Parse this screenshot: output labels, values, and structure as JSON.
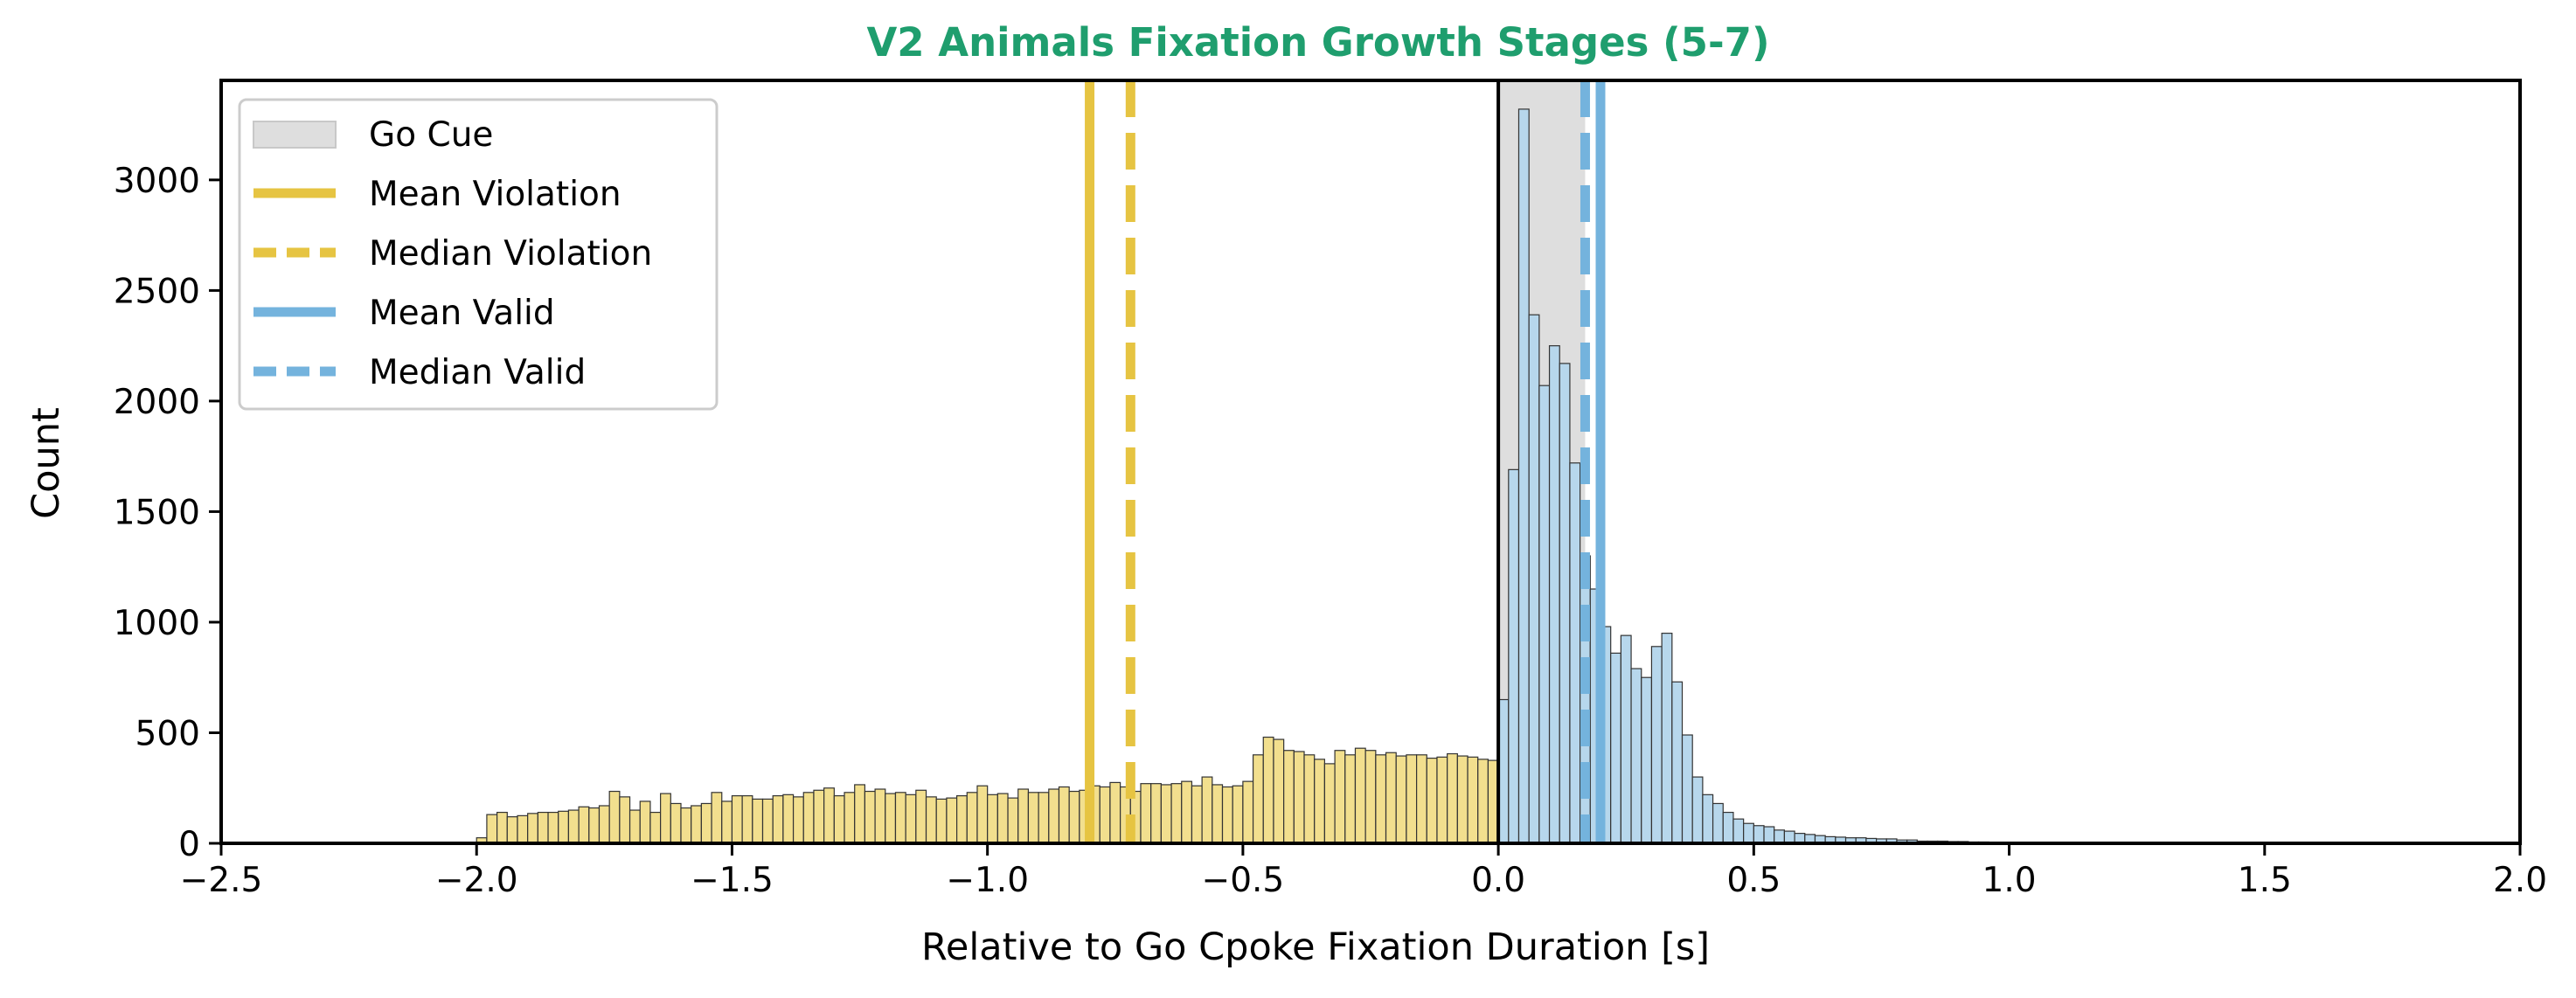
{
  "chart_data": {
    "type": "histogram",
    "title": "V2 Animals Fixation Growth Stages (5-7)",
    "title_color": "#1f9e6e",
    "xlabel": "Relative to Go Cpoke Fixation Duration [s]",
    "ylabel": "Count",
    "xlim": [
      -2.5,
      2.0
    ],
    "ylim": [
      0,
      3450
    ],
    "x_ticks": [
      -2.5,
      -2.0,
      -1.5,
      -1.0,
      -0.5,
      0.0,
      0.5,
      1.0,
      1.5,
      2.0
    ],
    "x_tick_labels": [
      "−2.5",
      "−2.0",
      "−1.5",
      "−1.0",
      "−0.5",
      "0.0",
      "0.5",
      "1.0",
      "1.5",
      "2.0"
    ],
    "y_ticks": [
      0,
      500,
      1000,
      1500,
      2000,
      2500,
      3000
    ],
    "y_tick_labels": [
      "0",
      "500",
      "1000",
      "1500",
      "2000",
      "2500",
      "3000"
    ],
    "legend_position": "top-left",
    "legend": [
      {
        "label": "Go Cue",
        "kind": "patch",
        "color": "#dedede"
      },
      {
        "label": "Mean Violation",
        "kind": "solid",
        "color": "#e6c442"
      },
      {
        "label": "Median Violation",
        "kind": "dashed",
        "color": "#e6c442"
      },
      {
        "label": "Mean Valid",
        "kind": "solid",
        "color": "#74b3dd"
      },
      {
        "label": "Median Valid",
        "kind": "dashed",
        "color": "#74b3dd"
      }
    ],
    "go_cue_span": [
      0.0,
      0.17
    ],
    "go_cue_color": "#dedede",
    "reference_lines": [
      {
        "name": "Mean Violation",
        "x": -0.8,
        "style": "solid",
        "color": "#e6c442"
      },
      {
        "name": "Median Violation",
        "x": -0.72,
        "style": "dashed",
        "color": "#e6c442"
      },
      {
        "name": "Mean Valid",
        "x": 0.2,
        "style": "solid",
        "color": "#74b3dd"
      },
      {
        "name": "Median Valid",
        "x": 0.17,
        "style": "dashed",
        "color": "#74b3dd"
      }
    ],
    "zero_line": 0.0,
    "series": [
      {
        "name": "Violation",
        "color": "#f2df8e",
        "edge_color": "#333333",
        "bin_width": 0.02,
        "bin_start": -2.0,
        "counts": [
          25,
          130,
          140,
          120,
          125,
          135,
          140,
          140,
          145,
          150,
          165,
          160,
          170,
          235,
          210,
          150,
          190,
          140,
          225,
          180,
          160,
          170,
          180,
          230,
          190,
          215,
          215,
          200,
          200,
          215,
          220,
          210,
          230,
          240,
          250,
          215,
          230,
          265,
          235,
          245,
          225,
          230,
          220,
          240,
          210,
          200,
          205,
          215,
          230,
          260,
          220,
          225,
          205,
          245,
          230,
          230,
          245,
          255,
          235,
          240,
          260,
          255,
          275,
          255,
          235,
          270,
          270,
          265,
          270,
          280,
          260,
          300,
          265,
          255,
          260,
          280,
          400,
          480,
          470,
          420,
          415,
          400,
          380,
          360,
          420,
          400,
          430,
          420,
          400,
          410,
          395,
          400,
          400,
          385,
          390,
          405,
          395,
          390,
          380,
          375
        ]
      },
      {
        "name": "Valid",
        "color": "#b7d7ec",
        "edge_color": "#333333",
        "bin_width": 0.02,
        "bin_start": 0.0,
        "counts": [
          650,
          1690,
          3320,
          2390,
          2070,
          2250,
          2170,
          1720,
          1300,
          1150,
          980,
          860,
          940,
          790,
          750,
          890,
          950,
          730,
          490,
          300,
          220,
          180,
          140,
          110,
          90,
          80,
          75,
          60,
          55,
          45,
          40,
          35,
          30,
          28,
          25,
          25,
          22,
          20,
          20,
          15,
          15,
          10,
          10,
          10,
          8,
          8,
          6,
          6,
          5,
          5,
          5,
          4,
          4,
          3,
          3,
          3,
          2,
          2,
          2,
          2,
          1,
          1,
          1,
          1,
          1,
          1,
          1,
          1,
          1,
          1,
          1,
          1,
          1,
          1,
          1,
          0,
          0,
          0,
          0,
          0,
          0,
          0,
          0,
          0,
          0,
          0,
          0,
          0,
          0,
          0
        ]
      }
    ]
  }
}
